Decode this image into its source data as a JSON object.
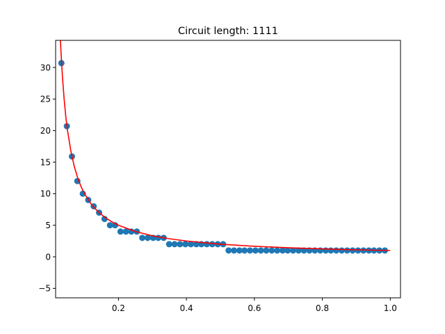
{
  "chart_data": {
    "type": "scatter",
    "title": "Circuit length: 1111",
    "xlabel": "",
    "ylabel": "",
    "xlim": [
      0.015,
      1.03
    ],
    "ylim": [
      -6.5,
      34.3
    ],
    "grid": false,
    "x_ticks": [
      0.2,
      0.4,
      0.6,
      0.8,
      1.0
    ],
    "x_tick_labels": [
      "0.2",
      "0.4",
      "0.6",
      "0.8",
      "1.0"
    ],
    "y_ticks": [
      -5,
      0,
      5,
      10,
      15,
      20,
      25,
      30
    ],
    "y_tick_labels": [
      "−5",
      "0",
      "5",
      "10",
      "15",
      "20",
      "25",
      "30"
    ],
    "colors": {
      "points": "#1f77b4",
      "fit": "#ff0000",
      "axes": "#000000"
    },
    "series": [
      {
        "kind": "points",
        "x": [
          0.032,
          0.048,
          0.063,
          0.079,
          0.095,
          0.111,
          0.127,
          0.143,
          0.159,
          0.175,
          0.19,
          0.206,
          0.222,
          0.238,
          0.254,
          0.27,
          0.286,
          0.302,
          0.317,
          0.333,
          0.349,
          0.365,
          0.381,
          0.397,
          0.413,
          0.429,
          0.444,
          0.46,
          0.476,
          0.492,
          0.508,
          0.524,
          0.54,
          0.556,
          0.571,
          0.587,
          0.603,
          0.619,
          0.635,
          0.651,
          0.667,
          0.683,
          0.698,
          0.714,
          0.73,
          0.746,
          0.762,
          0.778,
          0.794,
          0.81,
          0.825,
          0.841,
          0.857,
          0.873,
          0.889,
          0.905,
          0.921,
          0.937,
          0.952,
          0.968,
          0.984
        ],
        "y": [
          30.7,
          20.7,
          15.9,
          12,
          10,
          9,
          8,
          7,
          6,
          5,
          5,
          4,
          4,
          4,
          4,
          3,
          3,
          3,
          3,
          3,
          2,
          2,
          2,
          2,
          2,
          2,
          2,
          2,
          2,
          2,
          2,
          1,
          1,
          1,
          1,
          1,
          1,
          1,
          1,
          1,
          1,
          1,
          1,
          1,
          1,
          1,
          1,
          1,
          1,
          1,
          1,
          1,
          1,
          1,
          1,
          1,
          1,
          1,
          1,
          1,
          1
        ]
      },
      {
        "kind": "fit_curve",
        "x": [
          0.028,
          0.03,
          0.032,
          0.035,
          0.04,
          0.045,
          0.05,
          0.06,
          0.07,
          0.08,
          0.09,
          0.1,
          0.12,
          0.14,
          0.16,
          0.18,
          0.2,
          0.25,
          0.3,
          0.35,
          0.4,
          0.5,
          0.6,
          0.7,
          0.8,
          0.9,
          1.0
        ],
        "y": [
          35.7,
          33.3,
          31.3,
          28.6,
          25,
          22.2,
          20,
          16.7,
          14.3,
          12.5,
          11.1,
          10,
          8.33,
          7.14,
          6.25,
          5.56,
          5,
          4,
          3.33,
          2.86,
          2.5,
          2,
          1.67,
          1.43,
          1.25,
          1.11,
          1
        ]
      }
    ]
  }
}
